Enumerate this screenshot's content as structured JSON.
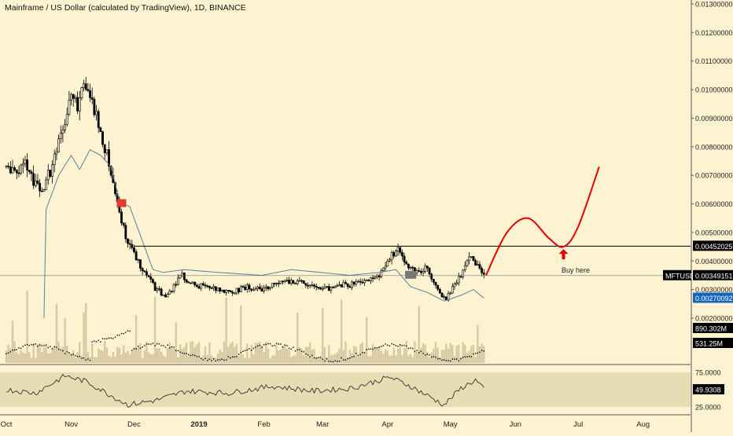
{
  "header": {
    "title": "Mainframe / US Dollar (calculated by TradingView), 1D, BINANCE"
  },
  "colors": {
    "background": "#fdf3d1",
    "candle": "#000000",
    "ma_line": "#5a7fa0",
    "level_line": "#000000",
    "projection": "#e00000",
    "volume": "#d7c9a2",
    "rsi_band": "#e8dcb5",
    "label_black": "#000000",
    "label_blue": "#1565c0"
  },
  "price_axis": {
    "ticks": [
      "0.01300000",
      "0.01200000",
      "0.01100000",
      "0.01000000",
      "0.00900000",
      "0.00800000",
      "0.00700000",
      "0.00600000",
      "0.00500000",
      "0.00400000",
      "0.00300000",
      "0.00200000"
    ],
    "badges": [
      {
        "name": "level",
        "text": "0.00452025"
      },
      {
        "name": "symbol",
        "text": "MFTUSD"
      },
      {
        "name": "last-price",
        "text": "0.00349151"
      },
      {
        "name": "ma",
        "text": "0.00270092"
      },
      {
        "name": "volume-ma",
        "text": "890.302M"
      },
      {
        "name": "volume",
        "text": "531.25M"
      }
    ]
  },
  "rsi_axis": {
    "ticks": [
      "75.0000",
      "25.0000"
    ],
    "badge": "49.9308"
  },
  "time_axis": {
    "labels": [
      "Oct",
      "Nov",
      "Dec",
      "2019",
      "Feb",
      "Mar",
      "Apr",
      "May",
      "Jun",
      "Jul",
      "Aug"
    ]
  },
  "annotations": {
    "buy_here": "Buy here"
  },
  "chart_data": {
    "type": "candlestick",
    "title": "Mainframe / US Dollar (calculated by TradingView), 1D, BINANCE",
    "symbol": "MFTUSD",
    "x_range": [
      "2018-10-01",
      "2019-08-15"
    ],
    "y_range": [
      0.0016,
      0.0132
    ],
    "horizontal_level": 0.00452025,
    "last_price": 0.00349151,
    "moving_average_last": 0.00270092,
    "volume_ma_last": "890.302M",
    "volume_last": "531.25M",
    "rsi_last": 49.9308,
    "rsi_levels": [
      75,
      25
    ],
    "price_path": [
      [
        "2018-10-01",
        0.0073
      ],
      [
        "2018-10-05",
        0.0071
      ],
      [
        "2018-10-10",
        0.0074
      ],
      [
        "2018-10-14",
        0.0068
      ],
      [
        "2018-10-18",
        0.0065
      ],
      [
        "2018-10-22",
        0.0072
      ],
      [
        "2018-10-26",
        0.0081
      ],
      [
        "2018-10-29",
        0.0089
      ],
      [
        "2018-11-01",
        0.0101
      ],
      [
        "2018-11-04",
        0.0096
      ],
      [
        "2018-11-07",
        0.0104
      ],
      [
        "2018-11-10",
        0.0097
      ],
      [
        "2018-11-13",
        0.009
      ],
      [
        "2018-11-16",
        0.0083
      ],
      [
        "2018-11-19",
        0.0074
      ],
      [
        "2018-11-22",
        0.0064
      ],
      [
        "2018-11-25",
        0.0055
      ],
      [
        "2018-11-28",
        0.0046
      ],
      [
        "2018-12-01",
        0.0043
      ],
      [
        "2018-12-04",
        0.0038
      ],
      [
        "2018-12-08",
        0.0034
      ],
      [
        "2018-12-12",
        0.003
      ],
      [
        "2018-12-16",
        0.0028
      ],
      [
        "2018-12-20",
        0.0031
      ],
      [
        "2018-12-24",
        0.0035
      ],
      [
        "2018-12-28",
        0.0032
      ],
      [
        "2019-01-03",
        0.0031
      ],
      [
        "2019-01-10",
        0.003
      ],
      [
        "2019-01-17",
        0.0029
      ],
      [
        "2019-01-24",
        0.0031
      ],
      [
        "2019-01-31",
        0.003
      ],
      [
        "2019-02-07",
        0.0032
      ],
      [
        "2019-02-14",
        0.0033
      ],
      [
        "2019-02-21",
        0.0032
      ],
      [
        "2019-02-28",
        0.003
      ],
      [
        "2019-03-07",
        0.0031
      ],
      [
        "2019-03-14",
        0.0032
      ],
      [
        "2019-03-21",
        0.0033
      ],
      [
        "2019-03-28",
        0.0035
      ],
      [
        "2019-04-02",
        0.0041
      ],
      [
        "2019-04-06",
        0.0044
      ],
      [
        "2019-04-10",
        0.0039
      ],
      [
        "2019-04-15",
        0.0036
      ],
      [
        "2019-04-20",
        0.0038
      ],
      [
        "2019-04-25",
        0.003
      ],
      [
        "2019-04-29",
        0.0027
      ],
      [
        "2019-05-03",
        0.0032
      ],
      [
        "2019-05-07",
        0.0036
      ],
      [
        "2019-05-11",
        0.0043
      ],
      [
        "2019-05-14",
        0.0038
      ],
      [
        "2019-05-17",
        0.0035
      ]
    ],
    "moving_average": [
      [
        "2018-10-19",
        0.002
      ],
      [
        "2018-10-20",
        0.0058
      ],
      [
        "2018-10-26",
        0.007
      ],
      [
        "2018-11-01",
        0.0077
      ],
      [
        "2018-11-05",
        0.0072
      ],
      [
        "2018-11-10",
        0.0079
      ],
      [
        "2018-11-15",
        0.0077
      ],
      [
        "2018-11-20",
        0.0073
      ],
      [
        "2018-11-24",
        0.0061
      ],
      [
        "2018-11-29",
        0.0059
      ],
      [
        "2018-12-05",
        0.0047
      ],
      [
        "2018-12-10",
        0.0037
      ],
      [
        "2018-12-15",
        0.0036
      ],
      [
        "2018-12-25",
        0.0037
      ],
      [
        "2019-01-10",
        0.0036
      ],
      [
        "2019-01-31",
        0.0035
      ],
      [
        "2019-02-14",
        0.0037
      ],
      [
        "2019-02-28",
        0.0036
      ],
      [
        "2019-03-14",
        0.0035
      ],
      [
        "2019-03-28",
        0.0036
      ],
      [
        "2019-04-05",
        0.0037
      ],
      [
        "2019-04-12",
        0.0031
      ],
      [
        "2019-04-20",
        0.0029
      ],
      [
        "2019-04-28",
        0.0026
      ],
      [
        "2019-05-06",
        0.0028
      ],
      [
        "2019-05-12",
        0.003
      ],
      [
        "2019-05-17",
        0.0027
      ]
    ],
    "projection": [
      [
        "2019-05-18",
        0.0035
      ],
      [
        "2019-05-28",
        0.005
      ],
      [
        "2019-06-07",
        0.0055
      ],
      [
        "2019-06-17",
        0.0048
      ],
      [
        "2019-06-24",
        0.0045
      ],
      [
        "2019-07-01",
        0.0052
      ],
      [
        "2019-07-11",
        0.0073
      ]
    ],
    "buy_point": [
      "2019-06-24",
      0.0045
    ],
    "rsi_path": [
      [
        "2018-10-01",
        50
      ],
      [
        "2018-10-15",
        45
      ],
      [
        "2018-10-29",
        70
      ],
      [
        "2018-11-08",
        62
      ],
      [
        "2018-11-18",
        45
      ],
      [
        "2018-11-28",
        28
      ],
      [
        "2018-12-12",
        35
      ],
      [
        "2018-12-26",
        48
      ],
      [
        "2019-01-15",
        45
      ],
      [
        "2019-02-05",
        55
      ],
      [
        "2019-02-25",
        48
      ],
      [
        "2019-03-15",
        52
      ],
      [
        "2019-04-02",
        68
      ],
      [
        "2019-04-12",
        55
      ],
      [
        "2019-04-28",
        28
      ],
      [
        "2019-05-06",
        52
      ],
      [
        "2019-05-13",
        64
      ],
      [
        "2019-05-17",
        50
      ]
    ]
  }
}
